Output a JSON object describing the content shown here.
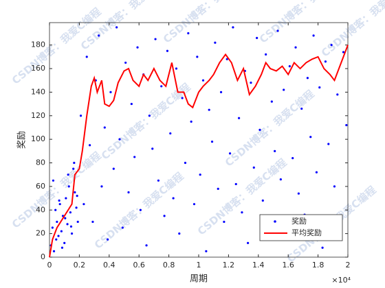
{
  "chart_data": {
    "type": "scatter-line",
    "x_label": "周期",
    "y_label": "奖励",
    "x_exponent_label": "×10⁴",
    "watermark": "CSDN博客：我爱C编程",
    "xlim": [
      0,
      20000
    ],
    "ylim": [
      0,
      199
    ],
    "xticks": [
      {
        "value": 0,
        "label": "0"
      },
      {
        "value": 2000,
        "label": "0.2"
      },
      {
        "value": 4000,
        "label": "0.4"
      },
      {
        "value": 6000,
        "label": "0.6"
      },
      {
        "value": 8000,
        "label": "0.8"
      },
      {
        "value": 10000,
        "label": "1"
      },
      {
        "value": 12000,
        "label": "1.2"
      },
      {
        "value": 14000,
        "label": "1.4"
      },
      {
        "value": 16000,
        "label": "1.6"
      },
      {
        "value": 18000,
        "label": "1.8"
      },
      {
        "value": 20000,
        "label": "2"
      }
    ],
    "yticks": [
      0,
      20,
      40,
      60,
      80,
      100,
      120,
      140,
      160,
      180
    ],
    "grid": false,
    "legend_position": "lower-right",
    "series": [
      {
        "name": "奖励",
        "kind": "scatter",
        "color": "#0000ff",
        "x": [
          100,
          200,
          300,
          400,
          500,
          600,
          700,
          800,
          900,
          1000,
          1100,
          1200,
          1300,
          1400,
          1500,
          1600,
          1700,
          1800,
          1900,
          250,
          450,
          650,
          850,
          1050,
          1250,
          1450,
          1650,
          1850,
          2100,
          2300,
          2500,
          2700,
          2900,
          3100,
          3300,
          3500,
          3700,
          3900,
          4100,
          4300,
          4500,
          4700,
          4900,
          5100,
          5300,
          5500,
          5700,
          5900,
          6100,
          6300,
          6500,
          6700,
          6900,
          7100,
          7300,
          7500,
          7700,
          7900,
          8100,
          8300,
          8500,
          8700,
          8900,
          9100,
          9300,
          9500,
          9700,
          9900,
          10100,
          10300,
          10500,
          10700,
          10900,
          11100,
          11300,
          11500,
          11700,
          11900,
          12100,
          12300,
          12500,
          12700,
          12900,
          13100,
          13300,
          13500,
          13700,
          13900,
          14100,
          14300,
          14500,
          14700,
          14900,
          15100,
          15300,
          15500,
          15700,
          15900,
          16100,
          16300,
          16500,
          16700,
          16900,
          17100,
          17300,
          17500,
          17700,
          17900,
          18100,
          18300,
          18500,
          18700,
          18900,
          19100,
          19300,
          19500,
          19700,
          19900
        ],
        "values": [
          10,
          25,
          5,
          40,
          30,
          18,
          45,
          22,
          35,
          12,
          50,
          28,
          60,
          38,
          20,
          75,
          55,
          42,
          30,
          65,
          15,
          48,
          8,
          33,
          70,
          26,
          80,
          52,
          120,
          45,
          170,
          95,
          30,
          150,
          188,
          60,
          110,
          15,
          140,
          75,
          195,
          100,
          25,
          165,
          55,
          130,
          85,
          178,
          40,
          155,
          10,
          120,
          92,
          185,
          65,
          145,
          35,
          175,
          105,
          50,
          160,
          20,
          135,
          80,
          190,
          115,
          45,
          170,
          70,
          150,
          5,
          125,
          98,
          182,
          58,
          140,
          30,
          168,
          88,
          195,
          62,
          118,
          38,
          158,
          12,
          148,
          76,
          186,
          108,
          48,
          172,
          26,
          132,
          90,
          192,
          66,
          142,
          18,
          162,
          84,
          178,
          54,
          126,
          36,
          152,
          102,
          188,
          72,
          144,
          8,
          166,
          96,
          180,
          60,
          138,
          28,
          174,
          112
        ]
      },
      {
        "name": "平均奖励",
        "kind": "line",
        "color": "#ff0000",
        "x": [
          0,
          200,
          500,
          1000,
          1500,
          1700,
          2000,
          2200,
          2500,
          2800,
          3000,
          3200,
          3500,
          3700,
          4000,
          4300,
          4600,
          5000,
          5300,
          5600,
          6000,
          6300,
          6600,
          7000,
          7400,
          7800,
          8200,
          8600,
          9000,
          9300,
          9600,
          10000,
          10300,
          10700,
          11000,
          11400,
          11800,
          12200,
          12600,
          13000,
          13400,
          13800,
          14200,
          14500,
          14800,
          15200,
          15600,
          16000,
          16400,
          16800,
          17200,
          17600,
          18000,
          18400,
          18800,
          19100,
          19400,
          19700,
          20000
        ],
        "values": [
          0,
          15,
          25,
          35,
          45,
          70,
          75,
          90,
          120,
          145,
          152,
          140,
          150,
          130,
          128,
          133,
          148,
          158,
          160,
          150,
          145,
          155,
          150,
          160,
          150,
          145,
          165,
          140,
          140,
          130,
          127,
          140,
          145,
          150,
          155,
          165,
          172,
          165,
          150,
          160,
          138,
          145,
          155,
          165,
          160,
          158,
          162,
          155,
          165,
          160,
          165,
          168,
          170,
          160,
          155,
          150,
          160,
          170,
          180
        ]
      }
    ]
  }
}
